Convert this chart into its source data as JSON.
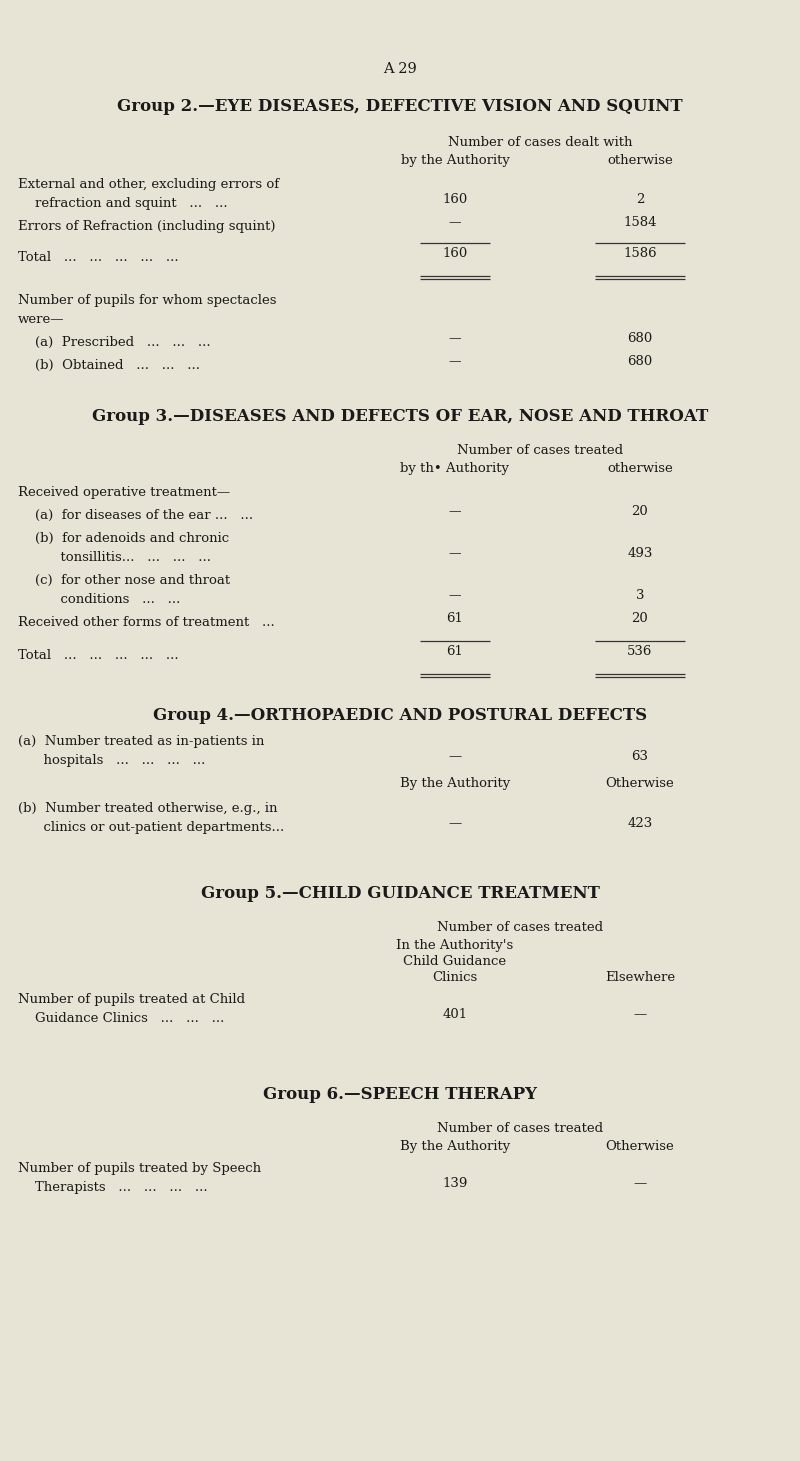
{
  "bg_color": "#e8e4d5",
  "text_color": "#1a1a1a",
  "page_label": "A 29",
  "group2_title": "Group 2.—EYE DISEASES, DEFECTIVE VISION AND SQUINT",
  "group2_hdr1": "Number of cases dealt with",
  "group2_hdr2": "by the Authority",
  "group2_hdr3": "otherwise",
  "group2_rows": [
    {
      "label1": "External and other, excluding errors of",
      "label2": "    refraction and squint   ...   ...",
      "auth": "160",
      "oth": "2",
      "two_line": true
    },
    {
      "label1": "Errors of Refraction (including squint)",
      "label2": "",
      "auth": "—",
      "oth": "1584",
      "two_line": false
    },
    {
      "label1": "Total   ...   ...   ...   ...   ...",
      "label2": "",
      "auth": "160",
      "oth": "1586",
      "two_line": false,
      "total": true
    },
    {
      "label1": "Number of pupils for whom spectacles",
      "label2": "were—",
      "auth": "",
      "oth": "",
      "two_line": true
    },
    {
      "label1": "    (a)  Prescribed   ...   ...   ...",
      "label2": "",
      "auth": "—",
      "oth": "680",
      "two_line": false
    },
    {
      "label1": "    (b)  Obtained   ...   ...   ...",
      "label2": "",
      "auth": "—",
      "oth": "680",
      "two_line": false
    }
  ],
  "group3_title": "Group 3.—DISEASES AND DEFECTS OF EAR, NOSE AND THROAT",
  "group3_hdr1": "Number of cases treated",
  "group3_hdr2": "by th• Authority",
  "group3_hdr3": "otherwise",
  "group3_rows": [
    {
      "label1": "Received operative treatment—",
      "label2": "",
      "auth": "",
      "oth": ""
    },
    {
      "label1": "    (a)  for diseases of the ear ...   ...",
      "label2": "",
      "auth": "—",
      "oth": "20"
    },
    {
      "label1": "    (b)  for adenoids and chronic",
      "label2": "          tonsillitis...   ...   ...   ...",
      "auth": "—",
      "oth": "493",
      "two_line": true
    },
    {
      "label1": "    (c)  for other nose and throat",
      "label2": "          conditions   ...   ...",
      "auth": "—",
      "oth": "3",
      "two_line": true
    },
    {
      "label1": "Received other forms of treatment   ...",
      "label2": "",
      "auth": "61",
      "oth": "20"
    },
    {
      "label1": "Total   ...   ...   ...   ...   ...",
      "label2": "",
      "auth": "61",
      "oth": "536",
      "total": true
    }
  ],
  "group4_title": "Group 4.—ORTHOPAEDIC AND POSTURAL DEFECTS",
  "group4_hdr2": "By the Authority",
  "group4_hdr3": "Otherwise",
  "group4_rows": [
    {
      "label1": "(a)  Number treated as in-patients in",
      "label2": "      hospitals   ...   ...   ...   ...",
      "auth": "—",
      "oth": "63"
    },
    {
      "label1": "(b)  Number treated otherwise, e.g., in",
      "label2": "      clinics or out-patient departments...",
      "auth": "—",
      "oth": "423"
    }
  ],
  "group5_title": "Group 5.—CHILD GUIDANCE TREATMENT",
  "group5_hdr1": "Number of cases treated",
  "group5_hdr2a": "In the Authority's",
  "group5_hdr2b": "Child Guidance",
  "group5_hdr2c": "Clinics",
  "group5_hdr3": "Elsewhere",
  "group5_row_label1": "Number of pupils treated at Child",
  "group5_row_label2": "    Guidance Clinics   ...   ...   ...",
  "group5_clinics": "401",
  "group5_elsewhere": "—",
  "group6_title": "Group 6.—SPEECH THERAPY",
  "group6_hdr1": "Number of cases treated",
  "group6_hdr2": "By the Authority",
  "group6_hdr3": "Otherwise",
  "group6_row_label1": "Number of pupils treated by Speech",
  "group6_row_label2": "    Therapists   ...   ...   ...   ...",
  "group6_auth": "139",
  "group6_oth": "—"
}
